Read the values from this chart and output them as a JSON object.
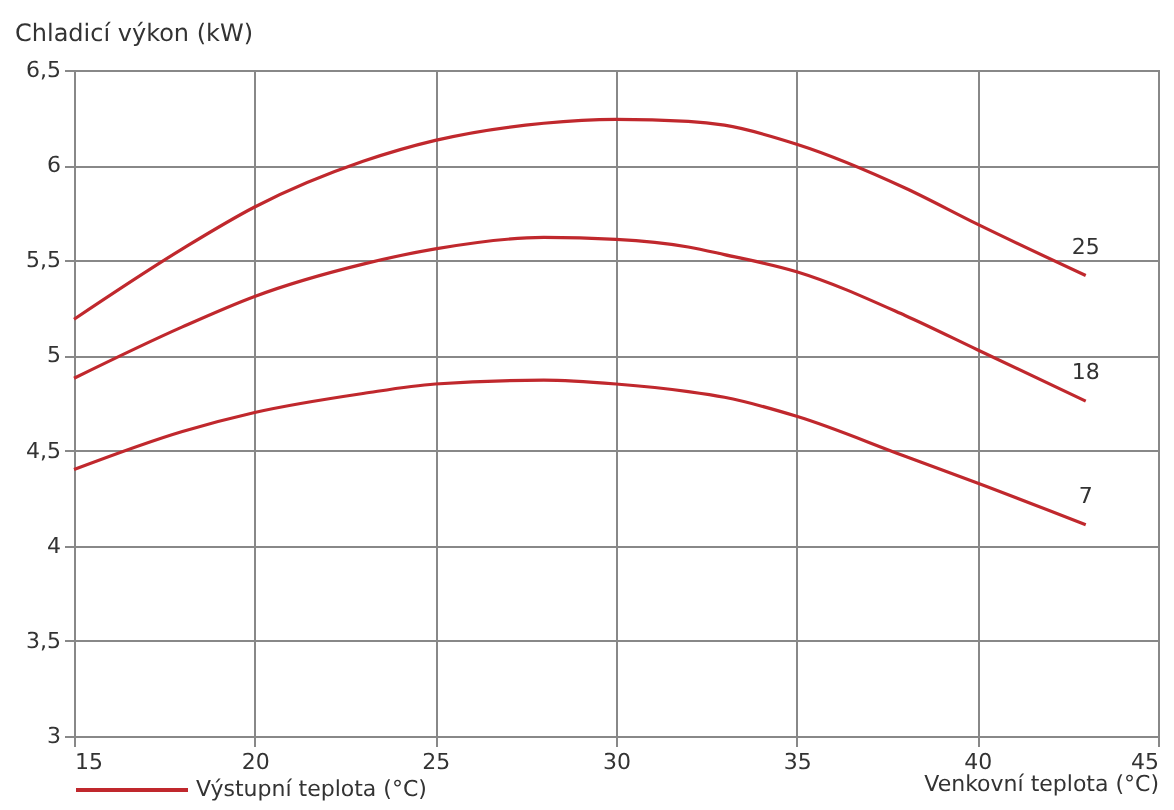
{
  "chart_data": {
    "type": "line",
    "xlabel": "Venkovní teplota (°C)",
    "ylabel": "Chladicí výkon (kW)",
    "legend_title": "Výstupní teplota (°C)",
    "x": [
      15,
      18,
      20,
      23,
      25,
      28,
      30,
      32,
      33,
      35,
      38,
      40,
      43
    ],
    "series": [
      {
        "name": "25",
        "color": "#c0282d",
        "values": [
          5.19,
          5.56,
          5.78,
          6.02,
          6.13,
          6.22,
          6.24,
          6.23,
          6.21,
          6.11,
          5.88,
          5.69,
          5.42
        ]
      },
      {
        "name": "18",
        "color": "#c0282d",
        "values": [
          4.88,
          5.15,
          5.31,
          5.48,
          5.56,
          5.62,
          5.61,
          5.57,
          5.53,
          5.44,
          5.21,
          5.03,
          4.76
        ]
      },
      {
        "name": "7",
        "color": "#c0282d",
        "values": [
          4.4,
          4.6,
          4.7,
          4.8,
          4.85,
          4.87,
          4.85,
          4.81,
          4.78,
          4.68,
          4.47,
          4.33,
          4.11
        ]
      }
    ],
    "xlim": [
      15,
      45
    ],
    "xticks": [
      15,
      20,
      25,
      30,
      35,
      40,
      45
    ],
    "ylim": [
      3,
      6.5
    ],
    "yticks": [
      3,
      {
        "value": 3.5,
        "label": "3,5"
      },
      4,
      {
        "value": 4.5,
        "label": "4,5"
      },
      5,
      {
        "value": 5.5,
        "label": "5,5"
      },
      6,
      {
        "value": 6.5,
        "label": "6,5"
      }
    ],
    "grid": true,
    "marker": "none",
    "line_style": "solid"
  }
}
